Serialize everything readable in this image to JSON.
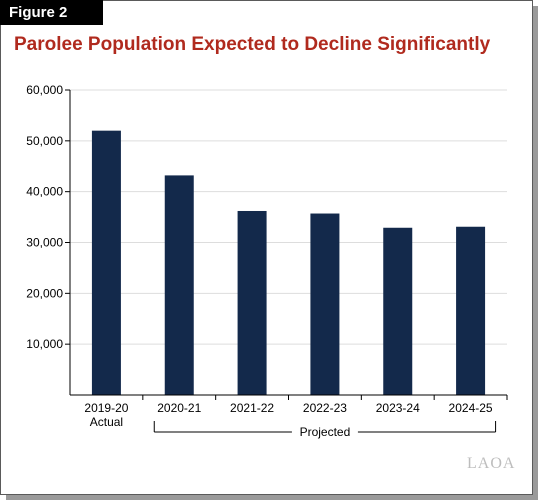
{
  "figure_label": "Figure 2",
  "watermark": "LAOA",
  "colors": {
    "title": "#b02a1e",
    "bar": "#13294b",
    "grid": "#dddddd",
    "axis": "#000000"
  },
  "bracket_label": "Projected",
  "chart_data": {
    "type": "bar",
    "title": "Parolee Population Expected to Decline Significantly",
    "xlabel": "",
    "ylabel": "",
    "categories": [
      "2019-20",
      "2020-21",
      "2021-22",
      "2022-23",
      "2023-24",
      "2024-25"
    ],
    "category_sublabels": [
      "Actual",
      "",
      "",
      "",
      "",
      ""
    ],
    "values": [
      52000,
      43200,
      36200,
      35700,
      32900,
      33100
    ],
    "ylim": [
      0,
      60000
    ],
    "yticks": [
      10000,
      20000,
      30000,
      40000,
      50000,
      60000
    ],
    "ytick_labels": [
      "10,000",
      "20,000",
      "30,000",
      "40,000",
      "50,000",
      "60,000"
    ],
    "grid": true,
    "legend": "none"
  }
}
